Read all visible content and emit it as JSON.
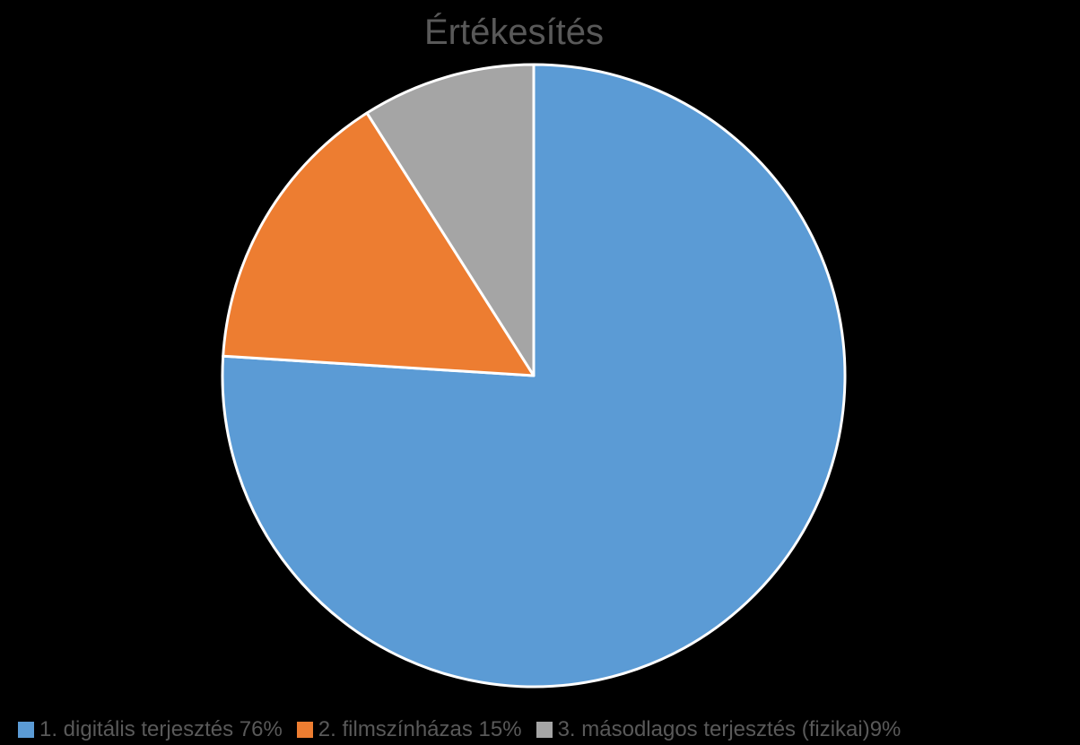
{
  "chart_data": {
    "type": "pie",
    "title": "Értékesítés",
    "categories": [
      "1. digitális terjesztés 76%",
      "2. filmszínházas 15%",
      "3. másodlagos terjesztés (fizikai)9%"
    ],
    "values": [
      76,
      15,
      9
    ],
    "colors": [
      "#5B9BD5",
      "#ED7D31",
      "#A5A5A5"
    ],
    "slice_border_color": "#FFFFFF",
    "start_angle_deg": 0,
    "direction": "clockwise",
    "legend_position": "bottom"
  }
}
